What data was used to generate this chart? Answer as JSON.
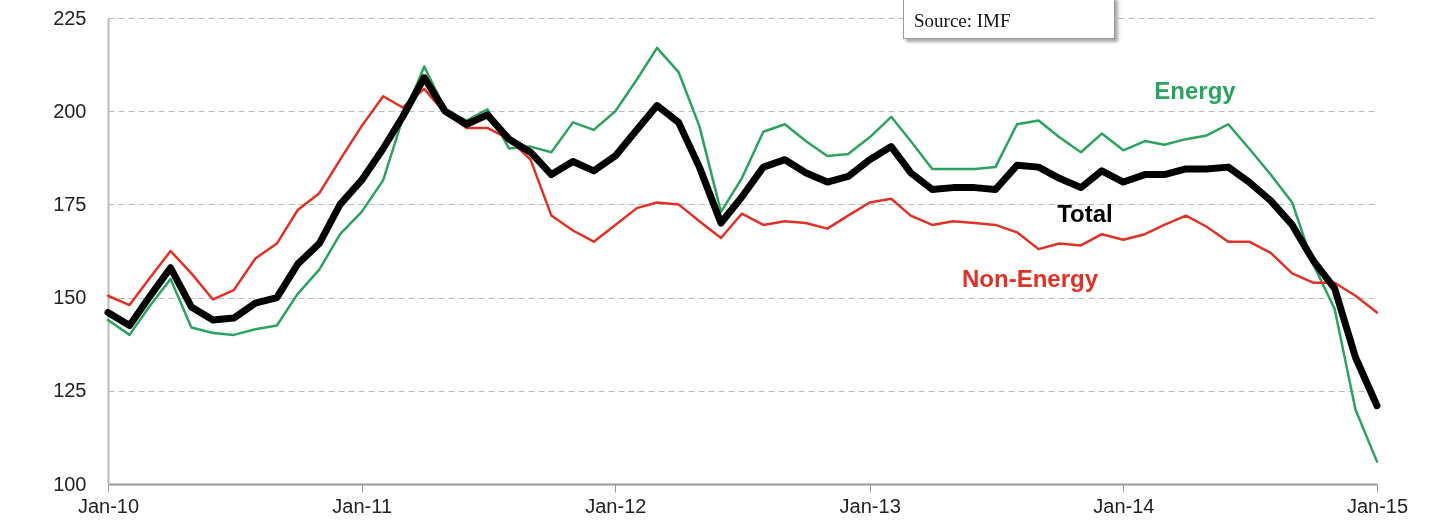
{
  "chart_data": {
    "type": "line",
    "x": [
      "2010-01",
      "2010-02",
      "2010-03",
      "2010-04",
      "2010-05",
      "2010-06",
      "2010-07",
      "2010-08",
      "2010-09",
      "2010-10",
      "2010-11",
      "2010-12",
      "2011-01",
      "2011-02",
      "2011-03",
      "2011-04",
      "2011-05",
      "2011-06",
      "2011-07",
      "2011-08",
      "2011-09",
      "2011-10",
      "2011-11",
      "2011-12",
      "2012-01",
      "2012-02",
      "2012-03",
      "2012-04",
      "2012-05",
      "2012-06",
      "2012-07",
      "2012-08",
      "2012-09",
      "2012-10",
      "2012-11",
      "2012-12",
      "2013-01",
      "2013-02",
      "2013-03",
      "2013-04",
      "2013-05",
      "2013-06",
      "2013-07",
      "2013-08",
      "2013-09",
      "2013-10",
      "2013-11",
      "2013-12",
      "2014-01",
      "2014-02",
      "2014-03",
      "2014-04",
      "2014-05",
      "2014-06",
      "2014-07",
      "2014-08",
      "2014-09",
      "2014-10",
      "2014-11",
      "2014-12",
      "2015-01"
    ],
    "series": [
      {
        "name": "Energy",
        "color": "#2ca25f",
        "values": [
          144,
          140,
          147.5,
          155,
          142,
          140.5,
          140,
          141.5,
          142.5,
          151,
          157.5,
          167,
          173,
          181.5,
          198,
          212,
          200.5,
          197.5,
          200.5,
          190,
          190.5,
          189,
          197,
          195,
          200,
          208.5,
          217,
          210.5,
          196,
          173,
          182,
          194.5,
          196.5,
          192,
          188,
          188.5,
          193,
          198.5,
          192,
          184.5,
          184.5,
          184.5,
          185,
          196.5,
          197.5,
          193,
          189,
          194,
          189.5,
          192,
          191,
          192.5,
          193.5,
          196.5,
          190,
          183,
          175.5,
          159,
          147,
          120,
          106
        ]
      },
      {
        "name": "Non-Energy",
        "color": "#e03127",
        "values": [
          150.5,
          148,
          155,
          162.5,
          156.5,
          149.5,
          152,
          160.5,
          164.5,
          173.5,
          178,
          187,
          196,
          204,
          201,
          206,
          199.5,
          195.5,
          195.5,
          192.5,
          187,
          172,
          168,
          165,
          169.5,
          174,
          175.5,
          175,
          170.5,
          166,
          172.5,
          169.5,
          170.5,
          170,
          168.5,
          172,
          175.5,
          176.5,
          172,
          169.5,
          170.5,
          170,
          169.5,
          167.5,
          163,
          164.5,
          164,
          167,
          165.5,
          167,
          169.5,
          172,
          169,
          165,
          165,
          162,
          156.5,
          154,
          154,
          150.5,
          146
        ]
      },
      {
        "name": "Total",
        "color": "#000000",
        "values": [
          146,
          142.5,
          150,
          158,
          147.5,
          144,
          144.5,
          148.5,
          150,
          159,
          164.5,
          175,
          181.5,
          190,
          198.5,
          209,
          200,
          196.5,
          199,
          192.5,
          189,
          183,
          186.5,
          184,
          188,
          195,
          201.5,
          197,
          185,
          170,
          177,
          185,
          187,
          183.5,
          181,
          182.5,
          187,
          190.5,
          183.5,
          179,
          179.5,
          179.5,
          179,
          185.5,
          185,
          182,
          179.5,
          184,
          181,
          183,
          183,
          184.5,
          184.5,
          185,
          181,
          176,
          169.5,
          160,
          152.5,
          134,
          121
        ]
      }
    ],
    "xlim": [
      "2010-01",
      "2015-01"
    ],
    "xticks": [
      {
        "value": "2010-01",
        "label": "Jan-10"
      },
      {
        "value": "2011-01",
        "label": "Jan-11"
      },
      {
        "value": "2012-01",
        "label": "Jan-12"
      },
      {
        "value": "2013-01",
        "label": "Jan-13"
      },
      {
        "value": "2014-01",
        "label": "Jan-14"
      },
      {
        "value": "2015-01",
        "label": "Jan-15"
      }
    ],
    "ylim": [
      100,
      225
    ],
    "yticks": [
      100,
      125,
      150,
      175,
      200,
      225
    ],
    "grid": "y",
    "annotations": [
      "Source: IMF"
    ]
  }
}
